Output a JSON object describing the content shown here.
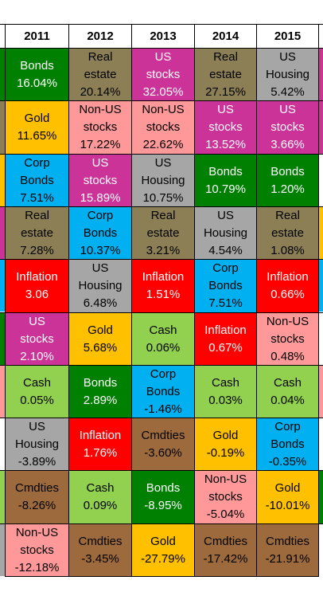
{
  "chart_data": {
    "type": "table",
    "title": "",
    "columns": [
      "2011",
      "2012",
      "2013",
      "2014",
      "2015"
    ],
    "colors": {
      "Bonds": "#008000",
      "Real estate": "#8c7f55",
      "US stocks": "#cc3399",
      "US Housing": "#a6a6a6",
      "Gold": "#ffc000",
      "Non-US stocks": "#ff9999",
      "Corp Bonds": "#00b0f0",
      "Inflation": "#ff0000",
      "Cash": "#92d050",
      "Cmdties": "#9c6a3c"
    },
    "text_colors": {
      "Bonds": "#ffffff",
      "Real estate": "#000000",
      "US stocks": "#ffffff",
      "US Housing": "#000000",
      "Gold": "#000000",
      "Non-US stocks": "#000000",
      "Corp Bonds": "#000000",
      "Inflation": "#ffffff",
      "Cash": "#000000",
      "Cmdties": "#000000"
    },
    "rows": [
      [
        {
          "asset": "Bonds",
          "lines": [
            "Bonds"
          ],
          "value": "16.04%"
        },
        {
          "asset": "Real estate",
          "lines": [
            "Real",
            "estate"
          ],
          "value": "20.14%"
        },
        {
          "asset": "US stocks",
          "lines": [
            "US",
            "stocks"
          ],
          "value": "32.05%"
        },
        {
          "asset": "Real estate",
          "lines": [
            "Real",
            "estate"
          ],
          "value": "27.15%"
        },
        {
          "asset": "US Housing",
          "lines": [
            "US",
            "Housing"
          ],
          "value": "5.42%"
        }
      ],
      [
        {
          "asset": "Gold",
          "lines": [
            "Gold"
          ],
          "value": "11.65%"
        },
        {
          "asset": "Non-US stocks",
          "lines": [
            "Non-US",
            "stocks"
          ],
          "value": "17.22%"
        },
        {
          "asset": "Non-US stocks",
          "lines": [
            "Non-US",
            "stocks"
          ],
          "value": "22.62%"
        },
        {
          "asset": "US stocks",
          "lines": [
            "US",
            "stocks"
          ],
          "value": "13.52%"
        },
        {
          "asset": "US stocks",
          "lines": [
            "US",
            "stocks"
          ],
          "value": "3.66%"
        }
      ],
      [
        {
          "asset": "Corp Bonds",
          "lines": [
            "Corp",
            "Bonds"
          ],
          "value": "7.51%"
        },
        {
          "asset": "US stocks",
          "lines": [
            "US",
            "stocks"
          ],
          "value": "15.89%"
        },
        {
          "asset": "US Housing",
          "lines": [
            "US",
            "Housing"
          ],
          "value": "10.75%"
        },
        {
          "asset": "Bonds",
          "lines": [
            "Bonds"
          ],
          "value": "10.79%"
        },
        {
          "asset": "Bonds",
          "lines": [
            "Bonds"
          ],
          "value": "1.20%"
        }
      ],
      [
        {
          "asset": "Real estate",
          "lines": [
            "Real",
            "estate"
          ],
          "value": "7.28%"
        },
        {
          "asset": "Corp Bonds",
          "lines": [
            "Corp",
            "Bonds"
          ],
          "value": "10.37%"
        },
        {
          "asset": "Real estate",
          "lines": [
            "Real",
            "estate"
          ],
          "value": "3.21%"
        },
        {
          "asset": "US Housing",
          "lines": [
            "US",
            "Housing"
          ],
          "value": "4.54%"
        },
        {
          "asset": "Real estate",
          "lines": [
            "Real",
            "estate"
          ],
          "value": "1.08%"
        }
      ],
      [
        {
          "asset": "Inflation",
          "lines": [
            "Inflation"
          ],
          "value": "3.06"
        },
        {
          "asset": "US Housing",
          "lines": [
            "US",
            "Housing"
          ],
          "value": "6.48%"
        },
        {
          "asset": "Inflation",
          "lines": [
            "Inflation"
          ],
          "value": "1.51%"
        },
        {
          "asset": "Corp Bonds",
          "lines": [
            "Corp",
            "Bonds"
          ],
          "value": "7.51%"
        },
        {
          "asset": "Inflation",
          "lines": [
            "Inflation"
          ],
          "value": "0.66%"
        }
      ],
      [
        {
          "asset": "US stocks",
          "lines": [
            "US",
            "stocks"
          ],
          "value": "2.10%"
        },
        {
          "asset": "Gold",
          "lines": [
            "Gold"
          ],
          "value": "5.68%"
        },
        {
          "asset": "Cash",
          "lines": [
            "Cash"
          ],
          "value": "0.06%"
        },
        {
          "asset": "Inflation",
          "lines": [
            "Inflation"
          ],
          "value": "0.67%"
        },
        {
          "asset": "Non-US stocks",
          "lines": [
            "Non-US",
            "stocks"
          ],
          "value": "0.48%"
        }
      ],
      [
        {
          "asset": "Cash",
          "lines": [
            "Cash"
          ],
          "value": "0.05%"
        },
        {
          "asset": "Bonds",
          "lines": [
            "Bonds"
          ],
          "value": "2.89%"
        },
        {
          "asset": "Corp Bonds",
          "lines": [
            "Corp",
            "Bonds"
          ],
          "value": "-1.46%"
        },
        {
          "asset": "Cash",
          "lines": [
            "Cash"
          ],
          "value": "0.03%"
        },
        {
          "asset": "Cash",
          "lines": [
            "Cash"
          ],
          "value": "0.04%"
        }
      ],
      [
        {
          "asset": "US Housing",
          "lines": [
            "US",
            "Housing"
          ],
          "value": "-3.89%"
        },
        {
          "asset": "Inflation",
          "lines": [
            "Inflation"
          ],
          "value": "1.76%"
        },
        {
          "asset": "Cmdties",
          "lines": [
            "Cmdties"
          ],
          "value": "-3.60%"
        },
        {
          "asset": "Gold",
          "lines": [
            "Gold"
          ],
          "value": "-0.19%"
        },
        {
          "asset": "Corp Bonds",
          "lines": [
            "Corp",
            "Bonds"
          ],
          "value": "-0.35%"
        }
      ],
      [
        {
          "asset": "Cmdties",
          "lines": [
            "Cmdties"
          ],
          "value": "-8.26%"
        },
        {
          "asset": "Cash",
          "lines": [
            "Cash"
          ],
          "value": "0.09%"
        },
        {
          "asset": "Bonds",
          "lines": [
            "Bonds"
          ],
          "value": "-8.95%"
        },
        {
          "asset": "Non-US stocks",
          "lines": [
            "Non-US",
            "stocks"
          ],
          "value": "-5.04%"
        },
        {
          "asset": "Gold",
          "lines": [
            "Gold"
          ],
          "value": "-10.01%"
        }
      ],
      [
        {
          "asset": "Non-US stocks",
          "lines": [
            "Non-US",
            "stocks"
          ],
          "value": "-12.18%"
        },
        {
          "asset": "Cmdties",
          "lines": [
            "Cmdties"
          ],
          "value": "-3.45%"
        },
        {
          "asset": "Gold",
          "lines": [
            "Gold"
          ],
          "value": "-27.79%"
        },
        {
          "asset": "Cmdties",
          "lines": [
            "Cmdties"
          ],
          "value": "-17.42%"
        },
        {
          "asset": "Cmdties",
          "lines": [
            "Cmdties"
          ],
          "value": "-21.91%"
        }
      ]
    ],
    "clipped_left_edge_colors": [
      "#ffffff",
      "#008000",
      "#8c7f55",
      "#ffc000",
      "#cc3399",
      "#00b0f0",
      "#008000",
      "#ff9999",
      "#ffffff",
      "#92d050",
      "#a6a6a6"
    ],
    "clipped_right_edge_colors": [
      "#ffffff",
      "#cc3399",
      "#cc3399",
      "#ffffff",
      "#ffc000",
      "#00b0f0",
      "#ffffff",
      "#ff9999",
      "#ffffff",
      "#008000",
      "#ffffff"
    ]
  }
}
